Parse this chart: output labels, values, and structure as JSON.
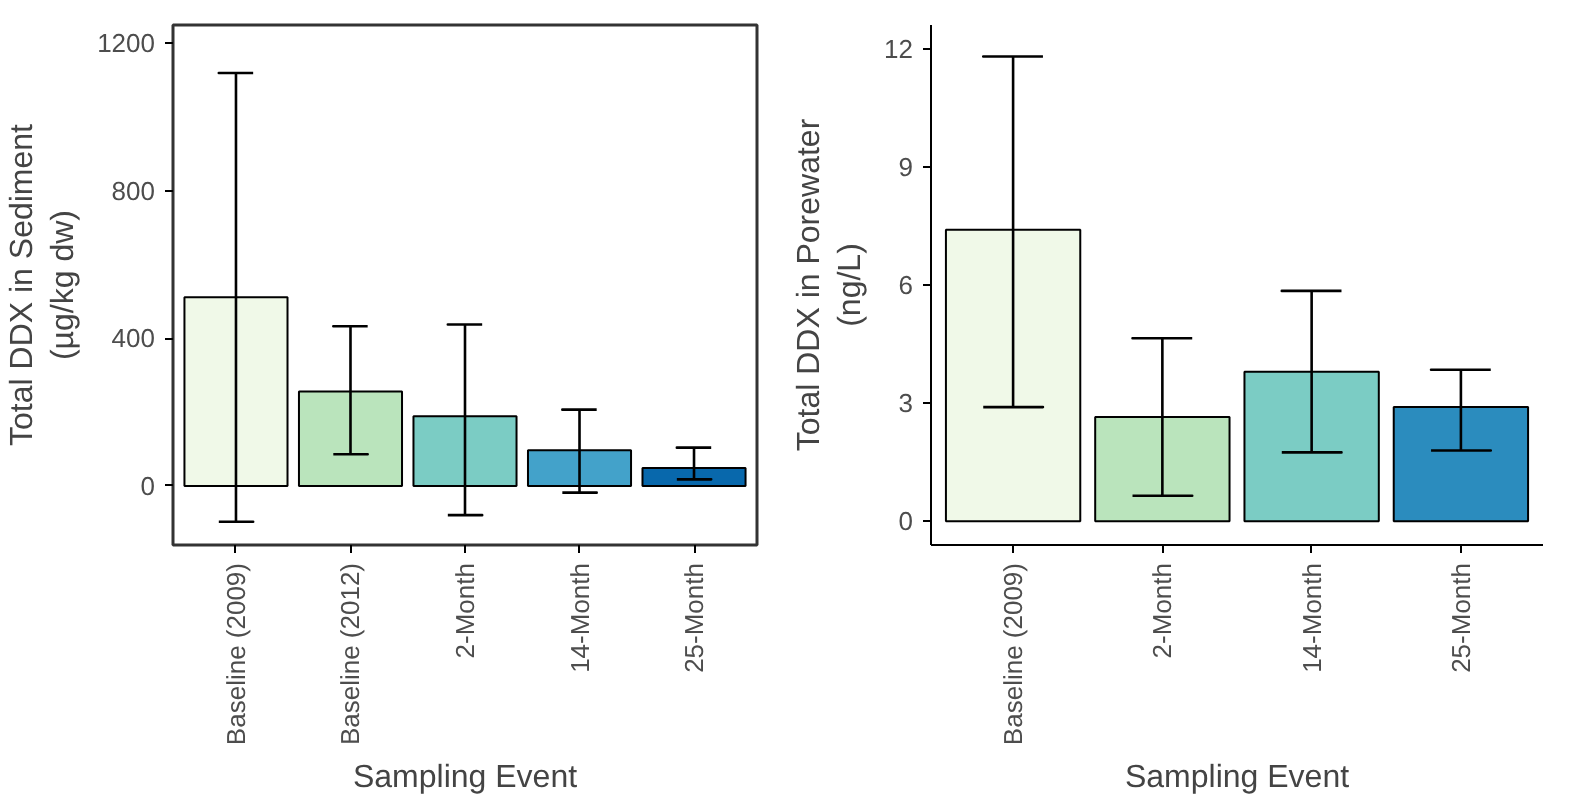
{
  "chart_data": [
    {
      "type": "bar",
      "xlabel": "Sampling Event",
      "ylabel": "Total DDX in Sediment\n(µg/kg dw)",
      "categories": [
        "Baseline (2009)",
        "Baseline (2012)",
        "2-Month",
        "14-Month",
        "25-Month"
      ],
      "values": [
        512,
        256,
        189,
        97,
        49
      ],
      "colors": [
        "#f0f9e8",
        "#bae4bc",
        "#7bccc4",
        "#43a2ca",
        "#0868ac"
      ],
      "errors": [
        [
          -97,
          1120
        ],
        [
          86,
          433
        ],
        [
          -79,
          438
        ],
        [
          -18,
          207
        ],
        [
          18,
          104
        ]
      ],
      "ylim": [
        -160,
        1250
      ],
      "yticks": [
        0,
        400,
        800,
        1200
      ]
    },
    {
      "type": "bar",
      "xlabel": "Sampling Event",
      "ylabel": "Total DDX in Porewater\n(ng/L)",
      "categories": [
        "Baseline (2009)",
        "2-Month",
        "14-Month",
        "25-Month"
      ],
      "values": [
        7.4,
        2.65,
        3.8,
        2.9
      ],
      "colors": [
        "#f0f9e8",
        "#bae4bc",
        "#7bccc4",
        "#2b8cbe"
      ],
      "errors": [
        [
          2.9,
          11.8
        ],
        [
          0.65,
          4.65
        ],
        [
          1.75,
          5.85
        ],
        [
          1.8,
          3.85
        ]
      ],
      "ylim": [
        -0.6,
        12.6
      ],
      "yticks": [
        0,
        3,
        6,
        9,
        12
      ]
    }
  ]
}
